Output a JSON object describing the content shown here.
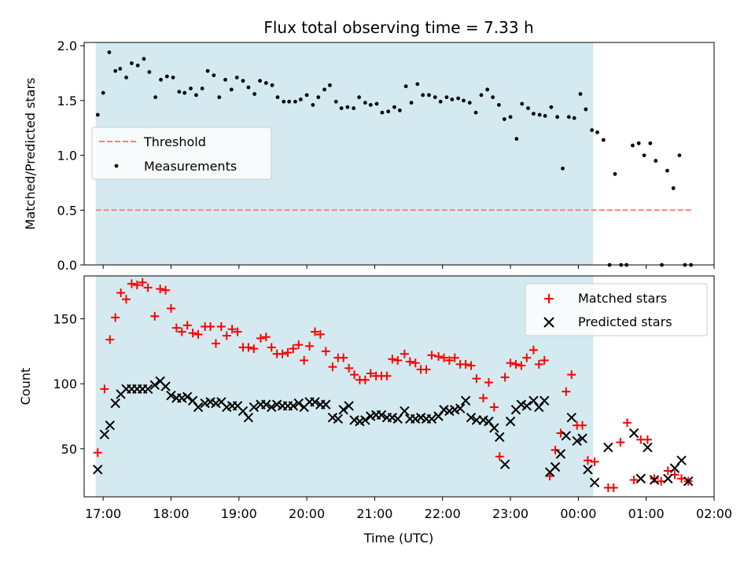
{
  "title": "Flux total observing time = 7.33 h",
  "colors": {
    "observing_span": "#d4eaf0",
    "threshold": "#ff7f7f",
    "measurements": "#000000",
    "matched": "#ff0000",
    "predicted": "#000000"
  },
  "chart_data": [
    {
      "type": "scatter",
      "panel": "top",
      "ylabel": "Matched/Predicted stars",
      "xlim": [
        -0.28,
        9.0
      ],
      "ylim": [
        0,
        2.03
      ],
      "yticks": [
        0.0,
        0.5,
        1.0,
        1.5,
        2.0
      ],
      "ytick_labels": [
        "0.0",
        "0.5",
        "1.0",
        "1.5",
        "2.0"
      ],
      "observing_span": [
        -0.11,
        7.22
      ],
      "threshold": {
        "name": "Threshold",
        "value": 0.5,
        "x_range": [
          -0.11,
          8.67
        ]
      },
      "legend": {
        "placement": "center-left",
        "entries": [
          "Threshold",
          "Measurements"
        ]
      },
      "series": [
        {
          "name": "Measurements",
          "marker": "dot",
          "x": [
            -0.08,
            0.0,
            0.09,
            0.18,
            0.25,
            0.34,
            0.42,
            0.51,
            0.6,
            0.68,
            0.77,
            0.85,
            0.94,
            1.03,
            1.12,
            1.2,
            1.29,
            1.37,
            1.46,
            1.54,
            1.63,
            1.71,
            1.8,
            1.89,
            1.97,
            2.06,
            2.14,
            2.23,
            2.31,
            2.4,
            2.49,
            2.57,
            2.66,
            2.74,
            2.83,
            2.91,
            3.0,
            3.09,
            3.17,
            3.26,
            3.34,
            3.43,
            3.51,
            3.6,
            3.69,
            3.77,
            3.86,
            3.94,
            4.03,
            4.11,
            4.2,
            4.29,
            4.37,
            4.46,
            4.54,
            4.63,
            4.71,
            4.8,
            4.89,
            4.97,
            5.06,
            5.14,
            5.23,
            5.31,
            5.4,
            5.49,
            5.57,
            5.66,
            5.74,
            5.83,
            5.91,
            6.0,
            6.09,
            6.17,
            6.26,
            6.34,
            6.43,
            6.51,
            6.6,
            6.69,
            6.77,
            6.86,
            6.94,
            7.03,
            7.11,
            7.2,
            7.28,
            7.37,
            7.46,
            7.54,
            7.63,
            7.71,
            7.8,
            7.89,
            7.97,
            8.06,
            8.14,
            8.23,
            8.31,
            8.4,
            8.49,
            8.57,
            8.66
          ],
          "y": [
            1.37,
            1.57,
            1.94,
            1.77,
            1.79,
            1.71,
            1.84,
            1.82,
            1.88,
            1.76,
            1.53,
            1.69,
            1.72,
            1.71,
            1.58,
            1.57,
            1.61,
            1.55,
            1.61,
            1.77,
            1.73,
            1.53,
            1.69,
            1.6,
            1.71,
            1.68,
            1.62,
            1.56,
            1.68,
            1.66,
            1.64,
            1.53,
            1.49,
            1.49,
            1.49,
            1.51,
            1.55,
            1.46,
            1.53,
            1.6,
            1.64,
            1.49,
            1.43,
            1.44,
            1.43,
            1.53,
            1.48,
            1.46,
            1.47,
            1.39,
            1.4,
            1.44,
            1.41,
            1.63,
            1.48,
            1.65,
            1.55,
            1.55,
            1.53,
            1.49,
            1.53,
            1.51,
            1.52,
            1.5,
            1.48,
            1.39,
            1.55,
            1.6,
            1.53,
            1.46,
            1.33,
            1.35,
            1.15,
            1.47,
            1.43,
            1.38,
            1.37,
            1.36,
            1.44,
            1.35,
            0.88,
            1.35,
            1.34,
            1.56,
            1.42,
            1.23,
            1.21,
            1.14,
            0.0,
            0.83,
            0.0,
            0.0,
            1.09,
            1.11,
            1.0,
            1.11,
            0.95,
            0.0,
            0.86,
            0.7,
            1.0,
            0.0,
            0.0
          ]
        }
      ]
    },
    {
      "type": "scatter",
      "panel": "bottom",
      "xlabel": "Time (UTC)",
      "ylabel": "Count",
      "xlim": [
        -0.28,
        9.0
      ],
      "ylim": [
        13,
        183
      ],
      "yticks": [
        50,
        100,
        150
      ],
      "ytick_labels": [
        "50",
        "100",
        "150"
      ],
      "xticks": [
        0,
        1,
        2,
        3,
        4,
        5,
        6,
        7,
        8,
        9
      ],
      "xtick_labels": [
        "17:00",
        "18:00",
        "19:00",
        "20:00",
        "21:00",
        "22:00",
        "23:00",
        "00:00",
        "01:00",
        "02:00"
      ],
      "observing_span": [
        -0.11,
        7.22
      ],
      "legend": {
        "placement": "upper-right",
        "entries": [
          "Matched stars",
          "Predicted stars"
        ]
      },
      "series": [
        {
          "name": "Matched stars",
          "marker": "plus",
          "x": [
            -0.08,
            0.02,
            0.1,
            0.18,
            0.26,
            0.34,
            0.42,
            0.5,
            0.58,
            0.66,
            0.76,
            0.84,
            0.92,
            1.0,
            1.08,
            1.16,
            1.24,
            1.32,
            1.4,
            1.5,
            1.58,
            1.66,
            1.74,
            1.82,
            1.9,
            1.98,
            2.06,
            2.14,
            2.22,
            2.32,
            2.4,
            2.48,
            2.56,
            2.64,
            2.72,
            2.8,
            2.88,
            2.96,
            3.04,
            3.12,
            3.2,
            3.28,
            3.38,
            3.46,
            3.54,
            3.62,
            3.7,
            3.78,
            3.86,
            3.94,
            4.02,
            4.1,
            4.18,
            4.26,
            4.34,
            4.44,
            4.52,
            4.6,
            4.68,
            4.76,
            4.84,
            4.94,
            5.02,
            5.1,
            5.18,
            5.26,
            5.34,
            5.42,
            5.5,
            5.6,
            5.68,
            5.76,
            5.84,
            5.92,
            6.0,
            6.08,
            6.16,
            6.24,
            6.34,
            6.42,
            6.5,
            6.58,
            6.66,
            6.74,
            6.82,
            6.9,
            6.98,
            7.06,
            7.14,
            7.24,
            7.44,
            7.52,
            7.62,
            7.72,
            7.82,
            7.92,
            8.02,
            8.12,
            8.22,
            8.32,
            8.42,
            8.52,
            8.62
          ],
          "y": [
            47,
            96,
            134,
            151,
            170,
            165,
            177,
            176,
            178,
            174,
            152,
            173,
            172,
            158,
            143,
            140,
            145,
            139,
            138,
            144,
            144,
            131,
            144,
            137,
            142,
            140,
            128,
            128,
            127,
            135,
            136,
            128,
            123,
            123,
            124,
            127,
            130,
            118,
            129,
            140,
            138,
            125,
            113,
            120,
            120,
            112,
            107,
            103,
            103,
            108,
            106,
            106,
            106,
            119,
            118,
            123,
            117,
            116,
            111,
            111,
            122,
            121,
            120,
            118,
            120,
            115,
            115,
            114,
            104,
            89,
            101,
            82,
            44,
            105,
            116,
            115,
            114,
            120,
            126,
            115,
            118,
            29,
            49,
            62,
            94,
            107,
            68,
            68,
            41,
            40,
            20,
            20,
            55,
            70,
            26,
            57,
            57,
            27,
            25,
            33,
            30,
            27,
            25
          ]
        },
        {
          "name": "Predicted stars",
          "marker": "x",
          "x": [
            -0.08,
            0.02,
            0.1,
            0.18,
            0.26,
            0.34,
            0.42,
            0.5,
            0.58,
            0.66,
            0.76,
            0.84,
            0.92,
            1.0,
            1.08,
            1.16,
            1.24,
            1.32,
            1.4,
            1.5,
            1.58,
            1.66,
            1.74,
            1.82,
            1.9,
            1.98,
            2.06,
            2.14,
            2.22,
            2.32,
            2.4,
            2.48,
            2.56,
            2.64,
            2.72,
            2.8,
            2.88,
            2.96,
            3.04,
            3.12,
            3.2,
            3.28,
            3.38,
            3.46,
            3.54,
            3.62,
            3.7,
            3.78,
            3.86,
            3.94,
            4.02,
            4.1,
            4.18,
            4.26,
            4.34,
            4.44,
            4.52,
            4.6,
            4.68,
            4.76,
            4.84,
            4.94,
            5.02,
            5.1,
            5.18,
            5.26,
            5.34,
            5.42,
            5.5,
            5.6,
            5.68,
            5.76,
            5.84,
            5.92,
            6.0,
            6.08,
            6.16,
            6.24,
            6.34,
            6.42,
            6.5,
            6.58,
            6.66,
            6.74,
            6.82,
            6.9,
            6.98,
            7.06,
            7.14,
            7.24,
            7.44,
            7.82,
            7.92,
            8.02,
            8.12,
            8.32,
            8.42,
            8.52,
            8.62
          ],
          "y": [
            34,
            61,
            68,
            85,
            92,
            96,
            96,
            96,
            96,
            96,
            99,
            102,
            98,
            91,
            89,
            89,
            90,
            87,
            82,
            85,
            86,
            85,
            86,
            82,
            83,
            83,
            79,
            74,
            82,
            84,
            84,
            82,
            84,
            83,
            83,
            83,
            85,
            82,
            86,
            86,
            84,
            84,
            74,
            73,
            80,
            83,
            72,
            71,
            72,
            75,
            76,
            76,
            74,
            74,
            73,
            79,
            73,
            73,
            74,
            73,
            73,
            75,
            80,
            79,
            80,
            81,
            87,
            74,
            72,
            72,
            71,
            66,
            59,
            38,
            71,
            80,
            84,
            83,
            87,
            82,
            87,
            32,
            36,
            46,
            60,
            74,
            56,
            58,
            34,
            24,
            51,
            62,
            27,
            51,
            26,
            27,
            35,
            41,
            25
          ]
        }
      ]
    }
  ]
}
